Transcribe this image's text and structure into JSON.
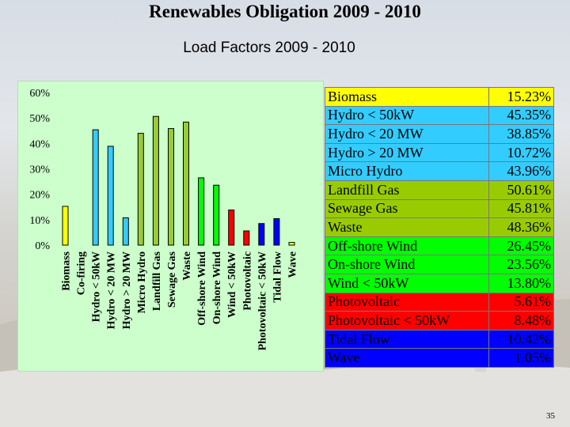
{
  "slide": {
    "title": "Renewables Obligation 2009 - 2010",
    "subtitle": "Load Factors 2009 - 2010",
    "page_number": "35"
  },
  "chart_data": {
    "type": "bar",
    "categories": [
      "Biomass",
      "Co-firing",
      "Hydro < 50kW",
      "Hydro < 20 MW",
      "Hydro > 20 MW",
      "Micro Hydro",
      "Landfill Gas",
      "Sewage Gas",
      "Waste",
      "Off-shore Wind",
      "On-shore Wind",
      "Wind < 50kW",
      "Photovoltaic",
      "Photovoltaic < 50kW",
      "Tidal Flow",
      "Wave"
    ],
    "values": [
      15.23,
      0,
      45.35,
      38.85,
      10.72,
      43.96,
      50.61,
      45.81,
      48.36,
      26.45,
      23.56,
      13.8,
      5.61,
      8.48,
      10.42,
      1.05
    ],
    "bar_colors": [
      "#ffff00",
      "#ffff00",
      "#33ccff",
      "#33ccff",
      "#33ccff",
      "#99cc33",
      "#99cc33",
      "#99cc33",
      "#99cc33",
      "#00ff00",
      "#00ff00",
      "#ff0000",
      "#ff0000",
      "#0000ff",
      "#0000ff",
      "#ffff00"
    ],
    "yticks": [
      "0%",
      "10%",
      "20%",
      "30%",
      "40%",
      "50%",
      "60%"
    ],
    "ylim": [
      0,
      60
    ],
    "grid": false,
    "background_color": "#ccffcc"
  },
  "table": {
    "rows": [
      {
        "name": "Biomass",
        "value": "15.23%",
        "color": "#ffff00"
      },
      {
        "name": "Hydro < 50kW",
        "value": "45.35%",
        "color": "#33ccff"
      },
      {
        "name": "Hydro < 20 MW",
        "value": "38.85%",
        "color": "#33ccff"
      },
      {
        "name": "Hydro > 20 MW",
        "value": "10.72%",
        "color": "#33ccff"
      },
      {
        "name": "Micro Hydro",
        "value": "43.96%",
        "color": "#33ccff"
      },
      {
        "name": "Landfill Gas",
        "value": "50.61%",
        "color": "#99cc00"
      },
      {
        "name": "Sewage Gas",
        "value": "45.81%",
        "color": "#99cc00"
      },
      {
        "name": "Waste",
        "value": "48.36%",
        "color": "#99cc00"
      },
      {
        "name": "Off-shore Wind",
        "value": "26.45%",
        "color": "#00ff00"
      },
      {
        "name": "On-shore Wind",
        "value": "23.56%",
        "color": "#00ff00"
      },
      {
        "name": "Wind < 50kW",
        "value": "13.80%",
        "color": "#00ff00"
      },
      {
        "name": "Photovoltaic",
        "value": "5.61%",
        "color": "#ff0000"
      },
      {
        "name": "Photovoltaic < 50kW",
        "value": "8.48%",
        "color": "#ff0000"
      },
      {
        "name": "Tidal Flow",
        "value": "10.42%",
        "color": "#0000ff"
      },
      {
        "name": "Wave",
        "value": "1.05%",
        "color": "#0000ff"
      }
    ]
  }
}
